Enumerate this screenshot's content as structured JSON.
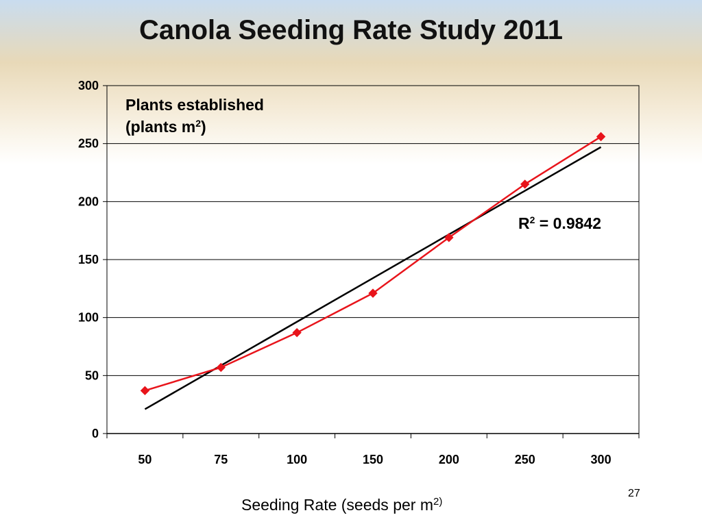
{
  "slide": {
    "title": "Canola Seeding Rate Study 2011",
    "page_number": "27"
  },
  "chart_data": {
    "type": "line",
    "categories": [
      "50",
      "75",
      "100",
      "150",
      "200",
      "250",
      "300"
    ],
    "ylim": [
      0,
      300
    ],
    "yticks": [
      0,
      50,
      100,
      150,
      200,
      250,
      300
    ],
    "grid": true,
    "legend": "none",
    "annotation_title": "Plants established",
    "annotation_unit_open": "(plants m",
    "annotation_unit_sup": "2",
    "annotation_unit_close": ")",
    "xlabel_main": "Seeding Rate (seeds per m",
    "xlabel_sup": "2)",
    "r2_label": "R",
    "r2_sup": "2",
    "r2_value": " = 0.9842",
    "series": [
      {
        "values": [
          37,
          57,
          87,
          121,
          169,
          215,
          256
        ],
        "color": "#e8141b",
        "marker": "diamond"
      }
    ],
    "trendline": {
      "start": 21,
      "end": 247,
      "color": "#000000"
    }
  }
}
